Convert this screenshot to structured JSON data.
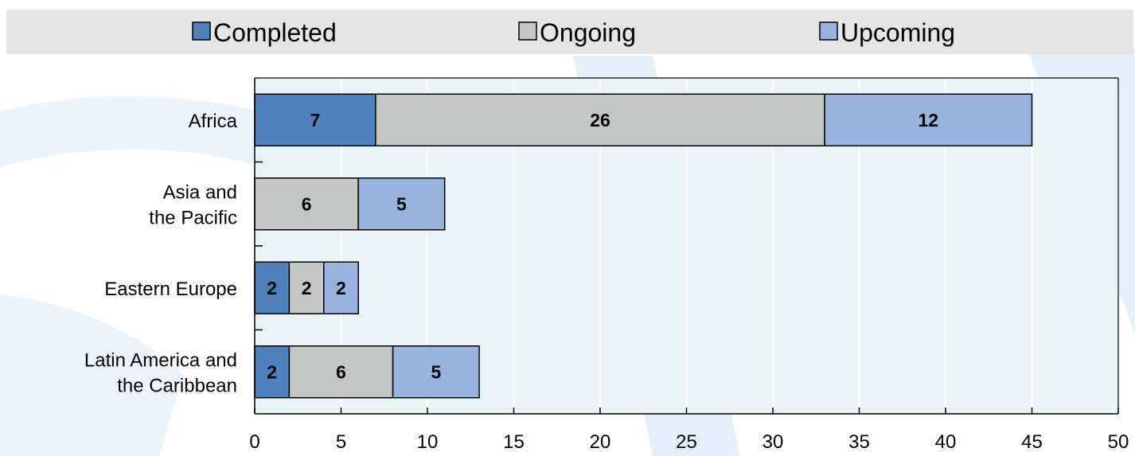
{
  "chart_data": {
    "type": "bar",
    "orientation": "horizontal",
    "stacked": true,
    "categories": [
      [
        "Africa"
      ],
      [
        "Asia and",
        "the Pacific"
      ],
      [
        "Eastern Europe"
      ],
      [
        "Latin America and",
        "the Caribbean"
      ]
    ],
    "series": [
      {
        "name": "Completed",
        "color": "#4f81bd",
        "values": [
          7,
          0,
          2,
          2
        ]
      },
      {
        "name": "Ongoing",
        "color": "#c4c5c5",
        "values": [
          26,
          6,
          2,
          6
        ]
      },
      {
        "name": "Upcoming",
        "color": "#98b3de",
        "values": [
          12,
          5,
          2,
          5
        ]
      }
    ],
    "xlim": [
      0,
      50
    ],
    "xticks": [
      0,
      5,
      10,
      15,
      20,
      25,
      30,
      35,
      40,
      45,
      50
    ],
    "grid": true,
    "legend_position": "top",
    "plot_background": "#eaf4f7",
    "legend_background": "#e5e5e5"
  }
}
